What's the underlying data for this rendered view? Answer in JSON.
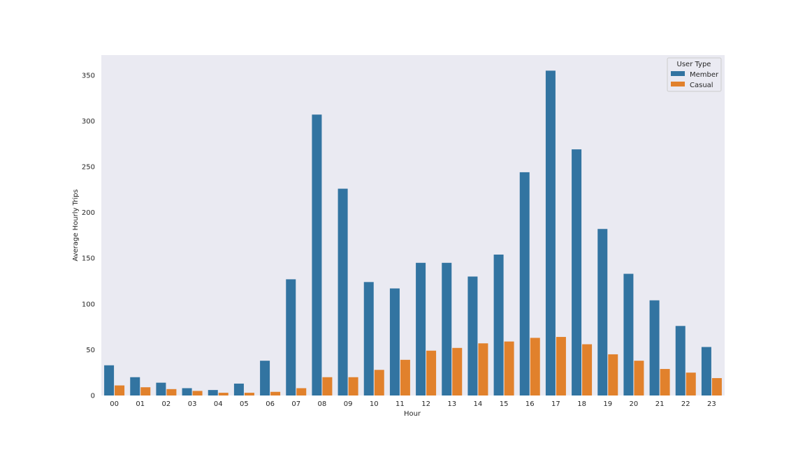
{
  "chart_data": {
    "type": "bar",
    "xlabel": "Hour",
    "ylabel": "Average Hourly Trips",
    "ylim": [
      0,
      372
    ],
    "yticks": [
      0,
      50,
      100,
      150,
      200,
      250,
      300,
      350
    ],
    "grid": false,
    "legend": {
      "title": "User Type",
      "placement": "top-right"
    },
    "categories": [
      "00",
      "01",
      "02",
      "03",
      "04",
      "05",
      "06",
      "07",
      "08",
      "09",
      "10",
      "11",
      "12",
      "13",
      "14",
      "15",
      "16",
      "17",
      "18",
      "19",
      "20",
      "21",
      "22",
      "23"
    ],
    "series": [
      {
        "name": "Member",
        "color": "#3274a1",
        "values": [
          33,
          20,
          14,
          8,
          6,
          13,
          38,
          127,
          307,
          226,
          124,
          117,
          145,
          145,
          130,
          154,
          244,
          355,
          269,
          182,
          133,
          104,
          76,
          53
        ]
      },
      {
        "name": "Casual",
        "color": "#e1812c",
        "values": [
          11,
          9,
          7,
          5,
          3,
          3,
          4,
          8,
          20,
          20,
          28,
          39,
          49,
          52,
          57,
          59,
          63,
          64,
          56,
          45,
          38,
          29,
          25,
          19
        ]
      }
    ],
    "background_color": "#eaeaf2"
  }
}
